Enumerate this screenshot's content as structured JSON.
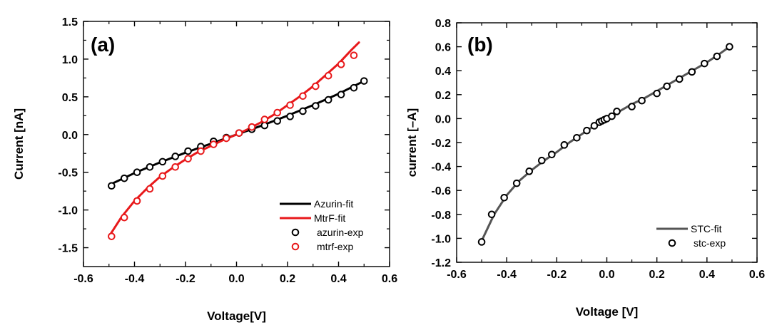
{
  "chart_data": [
    {
      "type": "scatter",
      "panel_label": "(a)",
      "xlabel": "Voltage[V]",
      "ylabel": "Current [nA]",
      "xlim": [
        -0.6,
        0.6
      ],
      "ylim": [
        -1.75,
        1.5
      ],
      "x_ticks": [
        -0.6,
        -0.4,
        -0.2,
        0.0,
        0.2,
        0.4,
        0.6
      ],
      "x_tick_labels": [
        "-0.6",
        "-0.4",
        "-0.2",
        "0.0",
        "0.2",
        "0.4",
        "0.6"
      ],
      "y_ticks": [
        -1.5,
        -1.0,
        -0.5,
        0.0,
        0.5,
        1.0,
        1.5
      ],
      "y_tick_labels": [
        "-1.5",
        "-1.0",
        "-0.5",
        "0.0",
        "0.5",
        "1.0",
        "1.5"
      ],
      "legend_position": "bottom-right",
      "series": [
        {
          "name": "Azurin-fit",
          "kind": "line",
          "color": "#000000",
          "x": [
            -0.5,
            -0.4,
            -0.3,
            -0.2,
            -0.1,
            0.0,
            0.1,
            0.2,
            0.3,
            0.4,
            0.5
          ],
          "y": [
            -0.67,
            -0.51,
            -0.37,
            -0.24,
            -0.12,
            0.0,
            0.12,
            0.25,
            0.39,
            0.54,
            0.71
          ]
        },
        {
          "name": "MtrF-fit",
          "kind": "line",
          "color": "#e8191b",
          "x": [
            -0.5,
            -0.45,
            -0.4,
            -0.35,
            -0.3,
            -0.25,
            -0.2,
            -0.15,
            -0.1,
            -0.05,
            0.0,
            0.05,
            0.1,
            0.15,
            0.2,
            0.25,
            0.3,
            0.35,
            0.4,
            0.45,
            0.48
          ],
          "y": [
            -1.35,
            -1.09,
            -0.88,
            -0.71,
            -0.56,
            -0.44,
            -0.33,
            -0.23,
            -0.15,
            -0.07,
            0.0,
            0.08,
            0.17,
            0.27,
            0.39,
            0.51,
            0.64,
            0.79,
            0.94,
            1.12,
            1.22
          ]
        },
        {
          "name": "azurin-exp",
          "kind": "marker",
          "color": "#000000",
          "x": [
            -0.49,
            -0.44,
            -0.39,
            -0.34,
            -0.29,
            -0.24,
            -0.19,
            -0.14,
            -0.09,
            -0.04,
            0.01,
            0.06,
            0.11,
            0.16,
            0.21,
            0.26,
            0.31,
            0.36,
            0.41,
            0.46,
            0.5
          ],
          "y": [
            -0.68,
            -0.58,
            -0.5,
            -0.43,
            -0.36,
            -0.29,
            -0.22,
            -0.16,
            -0.09,
            -0.04,
            0.02,
            0.07,
            0.12,
            0.18,
            0.24,
            0.31,
            0.38,
            0.46,
            0.53,
            0.62,
            0.71
          ]
        },
        {
          "name": "mtrf-exp",
          "kind": "marker",
          "color": "#e8191b",
          "x": [
            -0.49,
            -0.44,
            -0.39,
            -0.34,
            -0.29,
            -0.24,
            -0.19,
            -0.14,
            -0.09,
            -0.04,
            0.01,
            0.06,
            0.11,
            0.16,
            0.21,
            0.26,
            0.31,
            0.36,
            0.41,
            0.46
          ],
          "y": [
            -1.35,
            -1.1,
            -0.88,
            -0.72,
            -0.55,
            -0.43,
            -0.32,
            -0.22,
            -0.13,
            -0.05,
            0.02,
            0.1,
            0.2,
            0.29,
            0.39,
            0.51,
            0.64,
            0.78,
            0.93,
            1.05
          ]
        }
      ]
    },
    {
      "type": "scatter",
      "panel_label": "(b)",
      "xlabel": "Voltage [V]",
      "ylabel": "current [–A]",
      "xlim": [
        -0.6,
        0.6
      ],
      "ylim": [
        -1.2,
        0.8
      ],
      "x_ticks": [
        -0.6,
        -0.4,
        -0.2,
        0.0,
        0.2,
        0.4,
        0.6
      ],
      "x_tick_labels": [
        "-0.6",
        "-0.4",
        "-0.2",
        "0.0",
        "0.2",
        "0.4",
        "0.6"
      ],
      "y_ticks": [
        -1.2,
        -1.0,
        -0.8,
        -0.6,
        -0.4,
        -0.2,
        0.0,
        0.2,
        0.4,
        0.6,
        0.8
      ],
      "y_tick_labels": [
        "-1.2",
        "-1.0",
        "-0.8",
        "-0.6",
        "-0.4",
        "-0.2",
        "0.0",
        "0.2",
        "0.4",
        "0.6",
        "0.8"
      ],
      "legend_position": "bottom-right",
      "series": [
        {
          "name": "STC-fit",
          "kind": "line",
          "color": "#555555",
          "x": [
            -0.5,
            -0.45,
            -0.4,
            -0.35,
            -0.3,
            -0.25,
            -0.2,
            -0.15,
            -0.1,
            -0.05,
            0.0,
            0.05,
            0.1,
            0.15,
            0.2,
            0.25,
            0.3,
            0.35,
            0.4,
            0.45,
            0.49
          ],
          "y": [
            -1.02,
            -0.8,
            -0.64,
            -0.52,
            -0.43,
            -0.35,
            -0.28,
            -0.2,
            -0.13,
            -0.06,
            0.0,
            0.06,
            0.12,
            0.17,
            0.23,
            0.29,
            0.35,
            0.41,
            0.47,
            0.54,
            0.6
          ]
        },
        {
          "name": "stc-exp",
          "kind": "marker",
          "color": "#000000",
          "x": [
            -0.5,
            -0.46,
            -0.41,
            -0.36,
            -0.31,
            -0.26,
            -0.22,
            -0.17,
            -0.12,
            -0.08,
            -0.05,
            -0.03,
            -0.02,
            -0.01,
            0.0,
            0.02,
            0.04,
            0.1,
            0.14,
            0.2,
            0.24,
            0.29,
            0.34,
            0.39,
            0.44,
            0.49
          ],
          "y": [
            -1.03,
            -0.8,
            -0.66,
            -0.54,
            -0.44,
            -0.35,
            -0.3,
            -0.22,
            -0.16,
            -0.1,
            -0.06,
            -0.03,
            -0.02,
            -0.01,
            0.0,
            0.02,
            0.06,
            0.1,
            0.15,
            0.21,
            0.27,
            0.33,
            0.39,
            0.46,
            0.52,
            0.6
          ]
        }
      ]
    }
  ]
}
